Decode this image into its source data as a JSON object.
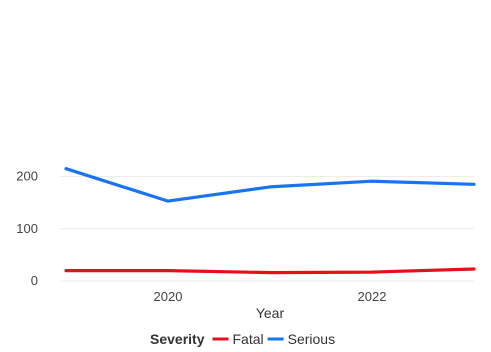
{
  "chart_data": {
    "type": "line",
    "title": "",
    "xlabel": "Year",
    "ylabel": "",
    "x": [
      2019,
      2020,
      2021,
      2022,
      2023
    ],
    "x_ticks": [
      "2020",
      "2022"
    ],
    "y_ticks": [
      "0",
      "100",
      "200"
    ],
    "ylim": [
      -10,
      250
    ],
    "xlim": [
      2019,
      2023
    ],
    "grid": true,
    "legend": {
      "title": "Severity",
      "placement": "bottom-center"
    },
    "series": [
      {
        "name": "Fatal",
        "values": [
          20,
          20,
          16,
          17,
          23
        ],
        "color": "#e5101a"
      },
      {
        "name": "Serious",
        "values": [
          215,
          153,
          180,
          191,
          185
        ],
        "color": "#1a73f0"
      }
    ]
  }
}
